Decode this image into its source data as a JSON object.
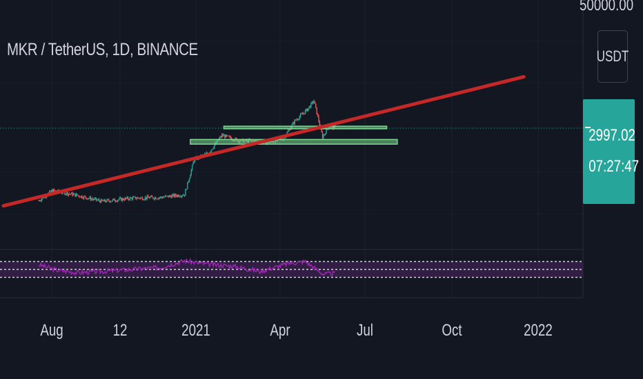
{
  "header": {
    "symbol_title": "MKR / TetherUS, 1D, BINANCE",
    "top_price_label": "50000.00",
    "currency_label": "USDT"
  },
  "price_badge": {
    "last_price": "2997.02",
    "countdown": "07:27:47",
    "color": "#26a69a"
  },
  "x_axis": {
    "labels": [
      "Aug",
      "12",
      "2021",
      "Apr",
      "Jul",
      "Oct",
      "2022"
    ]
  },
  "colors": {
    "background": "#131722",
    "trendline": "#c62828",
    "zone_fill": "#7bd88f",
    "candle_up": "#26a69a",
    "candle_down": "#ef5350",
    "rsi_line": "#9c27b0",
    "rsi_band": "#3b1f4f",
    "price_line": "#26a69a"
  },
  "chart_data": [
    {
      "type": "candlestick",
      "symbol": "MKR/USDT",
      "interval": "1D",
      "exchange": "BINANCE",
      "x_range": [
        "2020-07-26",
        "2022-01-31"
      ],
      "y_scale": "log",
      "last_price": 2997.02,
      "series": [
        {
          "x": [
            "2020-07-27",
            "2020-08-10",
            "2020-09-01",
            "2020-10-01",
            "2020-11-01",
            "2020-12-01",
            "2020-12-26",
            "2021-01-05",
            "2021-01-20",
            "2021-02-03",
            "2021-02-20",
            "2021-03-10",
            "2021-03-25",
            "2021-04-08",
            "2021-04-20",
            "2021-05-03",
            "2021-05-10",
            "2021-05-19",
            "2021-05-26",
            "2021-06-01"
          ],
          "values": [
            480,
            620,
            560,
            470,
            510,
            520,
            560,
            1350,
            1600,
            2500,
            2200,
            2150,
            2100,
            2300,
            3600,
            4800,
            6000,
            2400,
            3200,
            2997
          ]
        }
      ],
      "annotations": [
        {
          "kind": "trendline",
          "from": [
            "2020-06-20",
            420
          ],
          "to": [
            "2021-12-15",
            11000
          ],
          "color": "#c62828"
        },
        {
          "kind": "zone",
          "x_from": "2021-02-05",
          "x_to": "2021-07-25",
          "y_from": 2950,
          "y_to": 3150,
          "color": "#7bd88f"
        },
        {
          "kind": "zone",
          "x_from": "2021-01-01",
          "x_to": "2021-08-05",
          "y_from": 2000,
          "y_to": 2250,
          "color": "#7bd88f"
        }
      ]
    },
    {
      "type": "line",
      "series": [
        {
          "x": [
            "2020-07-27",
            "2020-08-15",
            "2020-09-05",
            "2020-10-01",
            "2020-11-01",
            "2020-12-01",
            "2020-12-26",
            "2021-01-15",
            "2021-02-15",
            "2021-03-15",
            "2021-04-15",
            "2021-05-01",
            "2021-05-20",
            "2021-06-01"
          ],
          "values": [
            62,
            48,
            42,
            45,
            50,
            55,
            72,
            64,
            58,
            45,
            66,
            70,
            38,
            40
          ]
        }
      ],
      "ylim": [
        0,
        100
      ],
      "bands": [
        30,
        50,
        70
      ]
    }
  ]
}
